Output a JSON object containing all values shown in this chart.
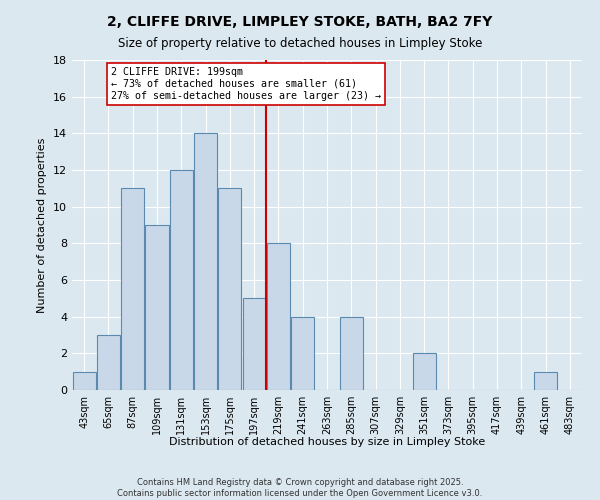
{
  "title": "2, CLIFFE DRIVE, LIMPLEY STOKE, BATH, BA2 7FY",
  "subtitle": "Size of property relative to detached houses in Limpley Stoke",
  "xlabel": "Distribution of detached houses by size in Limpley Stoke",
  "ylabel": "Number of detached properties",
  "bin_labels": [
    "43sqm",
    "65sqm",
    "87sqm",
    "109sqm",
    "131sqm",
    "153sqm",
    "175sqm",
    "197sqm",
    "219sqm",
    "241sqm",
    "263sqm",
    "285sqm",
    "307sqm",
    "329sqm",
    "351sqm",
    "373sqm",
    "395sqm",
    "417sqm",
    "439sqm",
    "461sqm",
    "483sqm"
  ],
  "bar_values": [
    1,
    3,
    11,
    9,
    12,
    14,
    11,
    5,
    8,
    4,
    0,
    4,
    0,
    0,
    2,
    0,
    0,
    0,
    0,
    1,
    0
  ],
  "bar_color": "#c8d8e8",
  "bar_edge_color": "#5a8ab0",
  "property_size_idx": 7,
  "vline_color": "#cc0000",
  "annotation_text": "2 CLIFFE DRIVE: 199sqm\n← 73% of detached houses are smaller (61)\n27% of semi-detached houses are larger (23) →",
  "annotation_box_color": "#ffffff",
  "annotation_box_edge": "#cc0000",
  "ylim": [
    0,
    18
  ],
  "yticks": [
    0,
    2,
    4,
    6,
    8,
    10,
    12,
    14,
    16,
    18
  ],
  "background_color": "#dce8f0",
  "grid_color": "#ffffff",
  "footer_line1": "Contains HM Land Registry data © Crown copyright and database right 2025.",
  "footer_line2": "Contains public sector information licensed under the Open Government Licence v3.0."
}
